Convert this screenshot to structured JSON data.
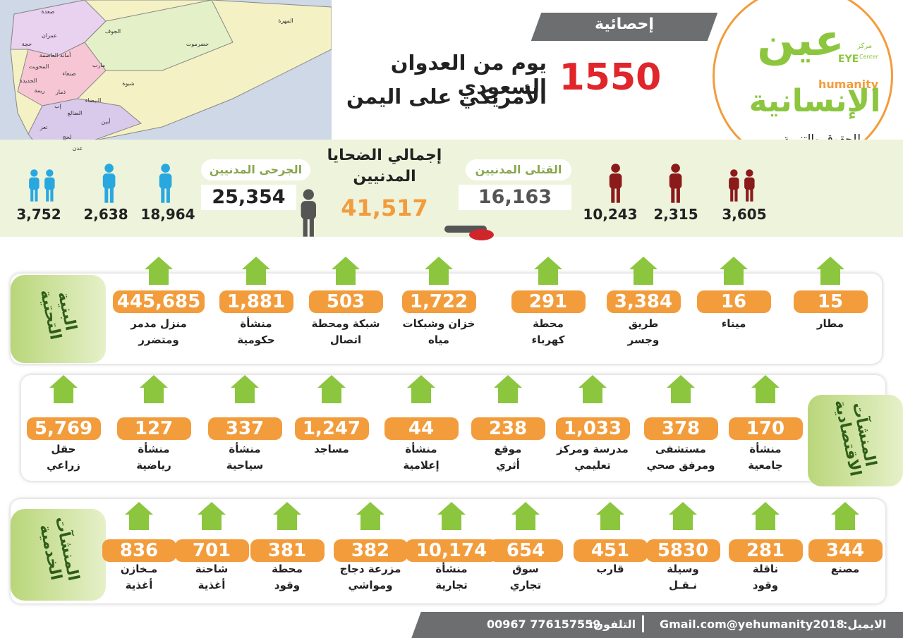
{
  "header": {
    "badge": "إحصائية",
    "days": "1550",
    "title_lines": [
      "يوم من العدوان السعودي",
      "الأمريكي على اليمن"
    ]
  },
  "logo": {
    "word_top": "عين",
    "small_ar": "مركز",
    "eye": "EYE",
    "center": "Center",
    "humanity": "humanity",
    "word_bottom": "الإنسانية",
    "tagline": "للحقوق والتنمية"
  },
  "map": {
    "labels": [
      "صعدة",
      "الجوف",
      "المهرة",
      "عمران",
      "حجة",
      "حضرموت",
      "أمانة العاصمة",
      "المحويت",
      "صنعاء",
      "مارب",
      "الحديدة",
      "ريمة",
      "ذمار",
      "شبوة",
      "إب",
      "البيضاء",
      "الضالع",
      "أبين",
      "تعز",
      "لحج",
      "عدن"
    ]
  },
  "casualties": {
    "killed": {
      "label": "القتلى المدنيين",
      "total": "16,163",
      "men": "10,243",
      "women": "2,315",
      "children": "3,605"
    },
    "total": {
      "label_lines": [
        "إجمالي الضحايا",
        "المدنيين"
      ],
      "value": "41,517"
    },
    "injured": {
      "label": "الجرحى المدنيين",
      "total": "25,354",
      "men": "18,964",
      "women": "2,638",
      "children": "3,752"
    }
  },
  "sections": [
    {
      "title_lines": [
        "البنية",
        "التحتية"
      ],
      "items": [
        {
          "value": "15",
          "lines": [
            "مطار"
          ]
        },
        {
          "value": "16",
          "lines": [
            "ميناء"
          ]
        },
        {
          "value": "3,384",
          "lines": [
            "طريق",
            "وجسر"
          ]
        },
        {
          "value": "291",
          "lines": [
            "محطة",
            "كهرباء"
          ]
        },
        {
          "value": "1,722",
          "lines": [
            "خزان وشبكات",
            "مياه"
          ]
        },
        {
          "value": "503",
          "lines": [
            "شبكة ومحطة",
            "اتصال"
          ]
        },
        {
          "value": "1,881",
          "lines": [
            "منشأة",
            "حكومية"
          ]
        },
        {
          "value": "445,685",
          "lines": [
            "منزل مدمر",
            "ومتضرر"
          ]
        }
      ]
    },
    {
      "title_lines": [
        "المنشآت",
        "الاقتصادية"
      ],
      "items": [
        {
          "value": "170",
          "lines": [
            "منشأة",
            "جامعية"
          ]
        },
        {
          "value": "378",
          "lines": [
            "مستشفى",
            "ومرفق صحي"
          ]
        },
        {
          "value": "1,033",
          "lines": [
            "مدرسة ومركز",
            "تعليمي"
          ]
        },
        {
          "value": "238",
          "lines": [
            "موقع",
            "أثري"
          ]
        },
        {
          "value": "44",
          "lines": [
            "منشأة",
            "إعلامية"
          ]
        },
        {
          "value": "1,247",
          "lines": [
            "مساجد"
          ]
        },
        {
          "value": "337",
          "lines": [
            "منشأة",
            "سياحية"
          ]
        },
        {
          "value": "127",
          "lines": [
            "منشأة",
            "رياضية"
          ]
        },
        {
          "value": "5,769",
          "lines": [
            "حقل",
            "زراعي"
          ]
        }
      ]
    },
    {
      "title_lines": [
        "المنشآت",
        "الخدمية"
      ],
      "items": [
        {
          "value": "344",
          "lines": [
            "مصنع"
          ]
        },
        {
          "value": "281",
          "lines": [
            "ناقلة",
            "وقود"
          ]
        },
        {
          "value": "5830",
          "lines": [
            "وسيلة",
            "نـقـل"
          ]
        },
        {
          "value": "451",
          "lines": [
            "قارب"
          ]
        },
        {
          "value": "654",
          "lines": [
            "سوق",
            "تجاري"
          ]
        },
        {
          "value": "10,174",
          "lines": [
            "منشأة",
            "تجارية"
          ]
        },
        {
          "value": "382",
          "lines": [
            "مزرعة دجاج",
            "ومواشي"
          ]
        },
        {
          "value": "381",
          "lines": [
            "محطة",
            "وقود"
          ]
        },
        {
          "value": "701",
          "lines": [
            "شاحنة",
            "أغذية"
          ]
        },
        {
          "value": "836",
          "lines": [
            "مـخازن",
            "أغذية"
          ]
        }
      ]
    }
  ],
  "footer": {
    "email_label": "الايميل:",
    "email": "Gmail.com@yehumanity2018",
    "phone_label": "التلفون:",
    "phone": "00967 776157559"
  }
}
